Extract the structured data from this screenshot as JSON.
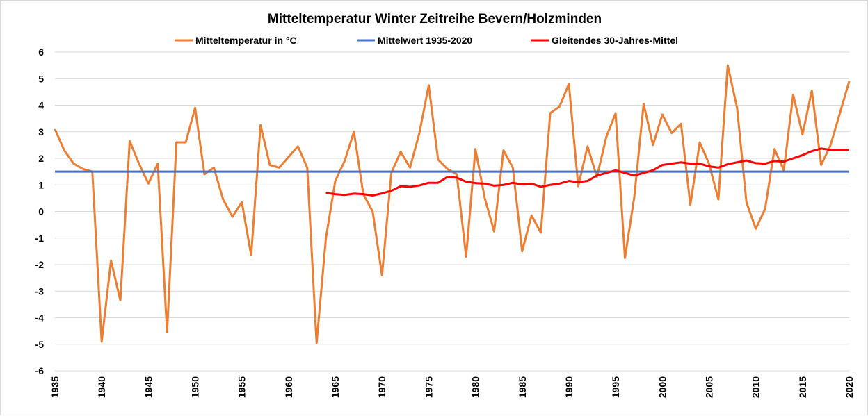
{
  "chart_data": {
    "type": "line",
    "title": "Mitteltemperatur Winter Zeitreihe Bevern/Holzminden",
    "xlabel": "",
    "ylabel": "",
    "xlim": [
      1935,
      2020
    ],
    "ylim": [
      -6,
      6
    ],
    "yticks": [
      6,
      5,
      4,
      3,
      2,
      1,
      0,
      -1,
      -2,
      -3,
      -4,
      -5,
      -6
    ],
    "xticks": [
      1935,
      1940,
      1945,
      1950,
      1955,
      1960,
      1965,
      1970,
      1975,
      1980,
      1985,
      1990,
      1995,
      2000,
      2005,
      2010,
      2015,
      2020
    ],
    "grid": true,
    "legend_position": "top",
    "series": [
      {
        "name": "Mitteltemperatur in °C",
        "color": "#ED7D31",
        "x_start": 1935,
        "values": [
          3.1,
          2.3,
          1.8,
          1.6,
          1.5,
          -4.9,
          -1.85,
          -3.35,
          2.65,
          1.8,
          1.05,
          1.8,
          -4.55,
          2.6,
          2.6,
          3.9,
          1.4,
          1.65,
          0.45,
          -0.2,
          0.35,
          -1.65,
          3.25,
          1.75,
          1.65,
          2.05,
          2.45,
          1.65,
          -4.95,
          -1.0,
          1.15,
          1.9,
          3.0,
          0.65,
          0.0,
          -2.4,
          1.45,
          2.25,
          1.65,
          2.95,
          4.75,
          1.95,
          1.6,
          1.4,
          -1.7,
          2.35,
          0.5,
          -0.75,
          2.3,
          1.65,
          -1.5,
          -0.15,
          -0.8,
          3.7,
          3.95,
          4.8,
          0.95,
          2.45,
          1.3,
          2.8,
          3.7,
          -1.75,
          0.55,
          4.05,
          2.5,
          3.65,
          2.95,
          3.3,
          0.25,
          2.6,
          1.8,
          0.45,
          5.5,
          3.9,
          0.35,
          -0.65,
          0.1,
          2.35,
          1.55,
          4.4,
          2.9,
          4.55,
          1.75,
          2.5,
          3.7,
          4.9
        ]
      },
      {
        "name": "Mittelwert 1935-2020",
        "color": "#4472C4",
        "x_start": 1935,
        "x_end": 2020,
        "constant": 1.5
      },
      {
        "name": "Gleitendes 30-Jahres-Mittel",
        "color": "#FF0000",
        "x_start": 1964,
        "values": [
          0.7,
          0.65,
          0.62,
          0.67,
          0.65,
          0.6,
          0.68,
          0.78,
          0.95,
          0.93,
          0.98,
          1.08,
          1.08,
          1.3,
          1.27,
          1.12,
          1.07,
          1.05,
          0.97,
          1.0,
          1.08,
          1.02,
          1.05,
          0.93,
          1.0,
          1.05,
          1.15,
          1.1,
          1.15,
          1.35,
          1.45,
          1.55,
          1.45,
          1.35,
          1.45,
          1.55,
          1.75,
          1.8,
          1.85,
          1.8,
          1.8,
          1.7,
          1.65,
          1.78,
          1.85,
          1.92,
          1.82,
          1.8,
          1.9,
          1.88,
          2.0,
          2.12,
          2.27,
          2.37,
          2.32,
          2.32,
          2.32
        ]
      }
    ]
  }
}
